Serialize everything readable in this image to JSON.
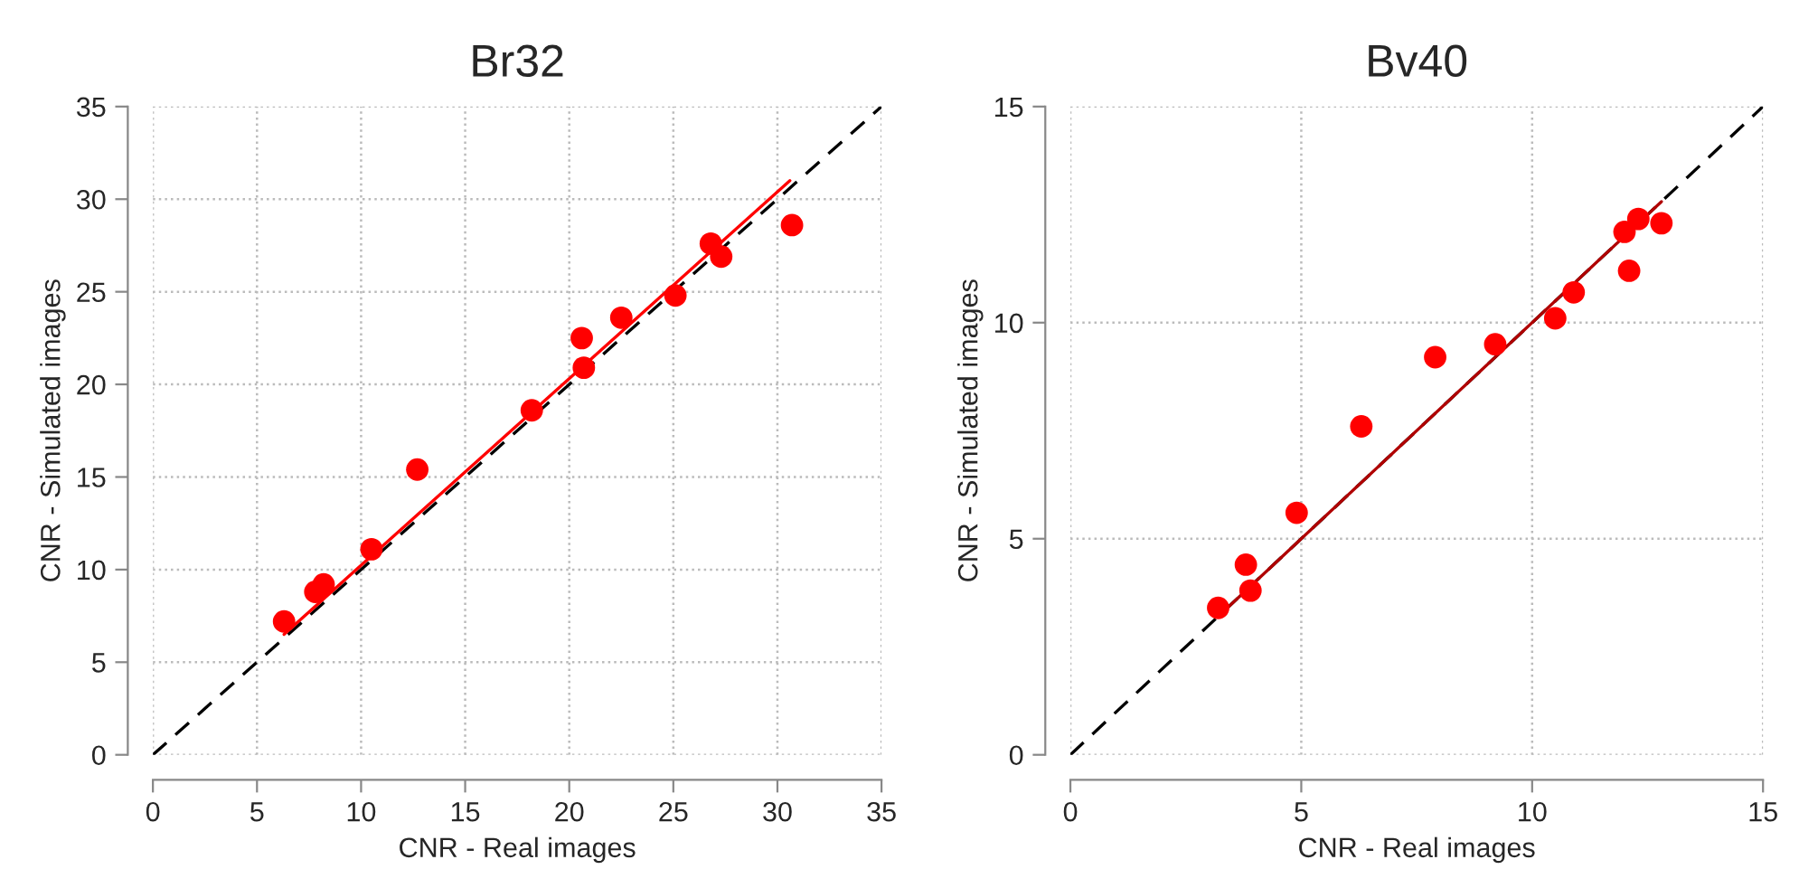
{
  "chart_data": [
    {
      "type": "scatter",
      "title": "Br32",
      "xlabel": "CNR - Real images",
      "ylabel": "CNR - Simulated images",
      "xlim": [
        0,
        35
      ],
      "ylim": [
        0,
        35
      ],
      "xticks": [
        0,
        5,
        10,
        15,
        20,
        25,
        30,
        35
      ],
      "yticks": [
        0,
        5,
        10,
        15,
        20,
        25,
        30,
        35
      ],
      "grid": true,
      "legend": false,
      "series": [
        {
          "color": "#ff0000",
          "marker": "circle",
          "x": [
            6.3,
            7.8,
            8.2,
            10.5,
            12.7,
            18.2,
            20.6,
            20.7,
            22.5,
            25.1,
            26.8,
            27.3,
            30.7
          ],
          "values": [
            7.2,
            8.8,
            9.2,
            11.1,
            15.4,
            18.6,
            22.5,
            20.9,
            23.6,
            24.8,
            27.6,
            26.9,
            28.6
          ]
        },
        {
          "type": "line",
          "color": "#000000",
          "marker": "none",
          "line_style": "dashed",
          "x": [
            0,
            35
          ],
          "values": [
            0,
            35
          ]
        },
        {
          "type": "line",
          "color": "#ff0000",
          "marker": "none",
          "line_style": "solid",
          "x": [
            6.3,
            30.6
          ],
          "values": [
            6.5,
            31.0
          ]
        }
      ]
    },
    {
      "type": "scatter",
      "title": "Bv40",
      "xlabel": "CNR - Real images",
      "ylabel": "CNR - Simulated images",
      "xlim": [
        0,
        15
      ],
      "ylim": [
        0,
        15
      ],
      "xticks": [
        0,
        5,
        10,
        15
      ],
      "yticks": [
        0,
        5,
        10,
        15
      ],
      "grid": true,
      "legend": false,
      "series": [
        {
          "color": "#ff0000",
          "marker": "circle",
          "x": [
            3.2,
            3.8,
            3.9,
            4.9,
            6.3,
            7.9,
            9.2,
            10.5,
            10.9,
            12.0,
            12.1,
            12.3,
            12.8
          ],
          "values": [
            3.4,
            4.4,
            3.8,
            5.6,
            7.6,
            9.2,
            9.5,
            10.1,
            10.7,
            12.1,
            11.2,
            12.4,
            12.3
          ]
        },
        {
          "type": "line",
          "color": "#000000",
          "marker": "none",
          "line_style": "dashed",
          "x": [
            0,
            15
          ],
          "values": [
            0,
            15
          ]
        },
        {
          "type": "line",
          "color": "#b00000",
          "marker": "none",
          "line_style": "solid",
          "x": [
            3.2,
            12.8
          ],
          "values": [
            3.2,
            12.8
          ]
        }
      ]
    }
  ]
}
